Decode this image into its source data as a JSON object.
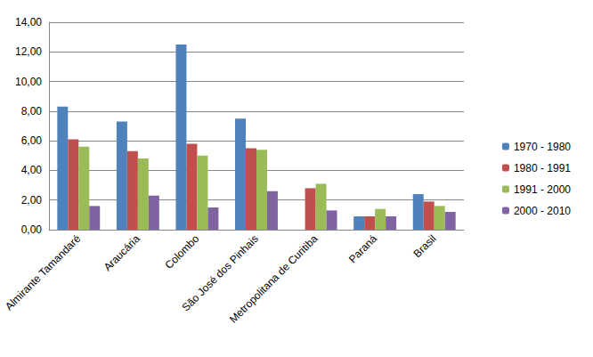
{
  "chart_data": {
    "type": "bar",
    "categories": [
      "Almirante Tamandaré",
      "Araucária",
      "Colombo",
      "São José dos Pinhais",
      "Metropolitana de Curitiba",
      "Paraná",
      "Brasil"
    ],
    "series": [
      {
        "name": "1970 - 1980",
        "color": "#4f81bd",
        "values": [
          8.3,
          7.3,
          12.5,
          7.5,
          null,
          0.9,
          2.4
        ]
      },
      {
        "name": "1980 - 1991",
        "color": "#c0504d",
        "values": [
          6.1,
          5.3,
          5.8,
          5.5,
          2.8,
          0.9,
          1.9
        ]
      },
      {
        "name": "1991 - 2000",
        "color": "#9bbb59",
        "values": [
          5.6,
          4.8,
          5.0,
          5.4,
          3.1,
          1.4,
          1.6
        ]
      },
      {
        "name": "2000 - 2010",
        "color": "#8064a2",
        "values": [
          1.6,
          2.3,
          1.5,
          2.6,
          1.3,
          0.9,
          1.2
        ]
      }
    ],
    "ylim": [
      0,
      14
    ],
    "yticks": [
      {
        "value": 0,
        "label": "0,00"
      },
      {
        "value": 2,
        "label": "2,00"
      },
      {
        "value": 4,
        "label": "4,00"
      },
      {
        "value": 6,
        "label": "6,00"
      },
      {
        "value": 8,
        "label": "8,00"
      },
      {
        "value": 10,
        "label": "10,00"
      },
      {
        "value": 12,
        "label": "12,00"
      },
      {
        "value": 14,
        "label": "14,00"
      }
    ],
    "grid": true,
    "legend": "right"
  }
}
